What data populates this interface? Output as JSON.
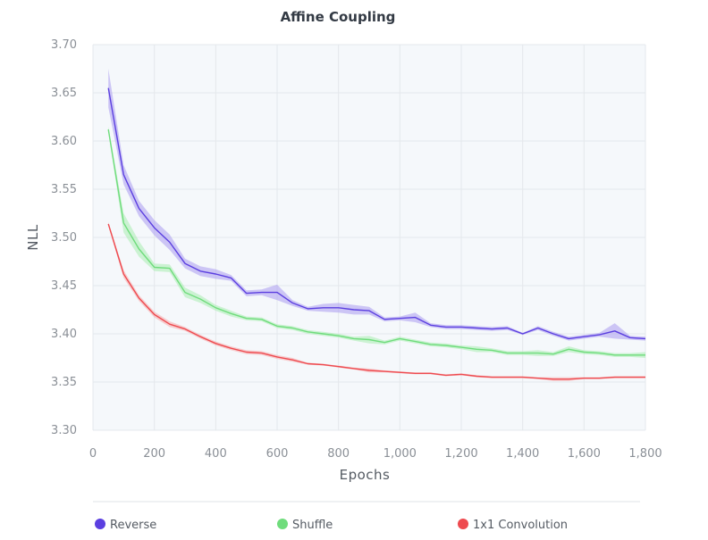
{
  "chart_data": {
    "type": "line",
    "title": "Affine Coupling",
    "xlabel": "Epochs",
    "ylabel": "NLL",
    "xlim": [
      0,
      1800
    ],
    "ylim": [
      3.3,
      3.7
    ],
    "x_ticks": [
      0,
      200,
      400,
      600,
      800,
      1000,
      1200,
      1400,
      1600,
      1800
    ],
    "x_tick_labels": [
      "0",
      "200",
      "400",
      "600",
      "800",
      "1,000",
      "1,200",
      "1,400",
      "1,600",
      "1,800"
    ],
    "y_ticks": [
      3.3,
      3.35,
      3.4,
      3.45,
      3.5,
      3.55,
      3.6,
      3.65,
      3.7
    ],
    "y_tick_labels": [
      "3.30",
      "3.35",
      "3.40",
      "3.45",
      "3.50",
      "3.55",
      "3.60",
      "3.65",
      "3.70"
    ],
    "grid": true,
    "legend_position": "bottom",
    "x": [
      50,
      100,
      150,
      200,
      250,
      300,
      350,
      400,
      450,
      500,
      550,
      600,
      650,
      700,
      750,
      800,
      850,
      900,
      950,
      1000,
      1050,
      1100,
      1150,
      1200,
      1250,
      1300,
      1350,
      1400,
      1450,
      1500,
      1550,
      1600,
      1650,
      1700,
      1750,
      1800
    ],
    "series": [
      {
        "name": "Reverse",
        "color": "#5b3fe0",
        "band_color": "#a99af0",
        "values": [
          3.655,
          3.565,
          3.53,
          3.51,
          3.495,
          3.473,
          3.465,
          3.462,
          3.458,
          3.442,
          3.443,
          3.443,
          3.432,
          3.426,
          3.427,
          3.427,
          3.425,
          3.424,
          3.415,
          3.416,
          3.417,
          3.409,
          3.407,
          3.407,
          3.406,
          3.405,
          3.406,
          3.4,
          3.406,
          3.4,
          3.395,
          3.397,
          3.399,
          3.403,
          3.396,
          3.395
        ],
        "band": [
          0.02,
          0.01,
          0.008,
          0.008,
          0.008,
          0.005,
          0.005,
          0.005,
          0.003,
          0.003,
          0.003,
          0.008,
          0.003,
          0.002,
          0.004,
          0.005,
          0.005,
          0.004,
          0.002,
          0.002,
          0.005,
          0.002,
          0.002,
          0.002,
          0.002,
          0.002,
          0.002,
          0.001,
          0.002,
          0.002,
          0.002,
          0.002,
          0.002,
          0.008,
          0.002,
          0.002
        ]
      },
      {
        "name": "Shuffle",
        "color": "#6fdc7c",
        "band_color": "#a8ecb0",
        "values": [
          3.612,
          3.515,
          3.488,
          3.469,
          3.468,
          3.443,
          3.436,
          3.427,
          3.421,
          3.416,
          3.415,
          3.408,
          3.406,
          3.402,
          3.4,
          3.398,
          3.395,
          3.394,
          3.391,
          3.395,
          3.392,
          3.389,
          3.388,
          3.386,
          3.384,
          3.383,
          3.38,
          3.38,
          3.38,
          3.379,
          3.384,
          3.381,
          3.38,
          3.378,
          3.378,
          3.378
        ],
        "band": [
          0.003,
          0.01,
          0.008,
          0.004,
          0.004,
          0.005,
          0.004,
          0.003,
          0.003,
          0.002,
          0.002,
          0.002,
          0.002,
          0.002,
          0.002,
          0.002,
          0.002,
          0.004,
          0.002,
          0.002,
          0.002,
          0.002,
          0.002,
          0.002,
          0.003,
          0.002,
          0.002,
          0.002,
          0.003,
          0.002,
          0.003,
          0.002,
          0.002,
          0.002,
          0.002,
          0.003
        ]
      },
      {
        "name": "1x1 Convolution",
        "color": "#ee4a4f",
        "band_color": "#f6a9ab",
        "values": [
          3.514,
          3.462,
          3.437,
          3.42,
          3.41,
          3.405,
          3.397,
          3.39,
          3.385,
          3.381,
          3.38,
          3.376,
          3.373,
          3.369,
          3.368,
          3.366,
          3.364,
          3.362,
          3.361,
          3.36,
          3.359,
          3.359,
          3.357,
          3.358,
          3.356,
          3.355,
          3.355,
          3.355,
          3.354,
          3.353,
          3.353,
          3.354,
          3.354,
          3.355,
          3.355,
          3.355
        ],
        "band": [
          0.002,
          0.004,
          0.003,
          0.003,
          0.003,
          0.002,
          0.002,
          0.002,
          0.002,
          0.002,
          0.002,
          0.002,
          0.002,
          0.001,
          0.001,
          0.001,
          0.001,
          0.002,
          0.001,
          0.001,
          0.001,
          0.001,
          0.001,
          0.001,
          0.001,
          0.001,
          0.001,
          0.001,
          0.001,
          0.002,
          0.002,
          0.001,
          0.001,
          0.001,
          0.001,
          0.001
        ]
      }
    ]
  }
}
